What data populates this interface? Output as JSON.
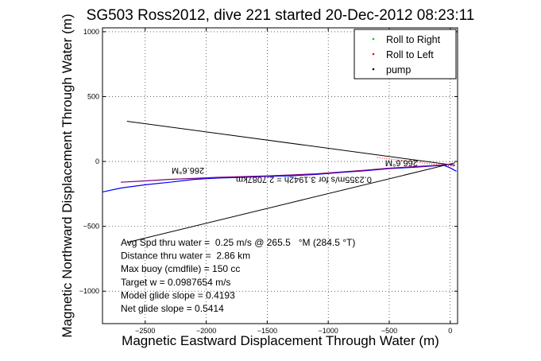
{
  "chart_data": {
    "type": "line",
    "title": "SG503 Ross2012, dive 221 started 20-Dec-2012 08:23:11",
    "xlabel": "Magnetic Eastward Displacement Through Water (m)",
    "ylabel": "Magnetic Northward Displacement Through Water (m)",
    "xlim": [
      -2850,
      60
    ],
    "ylim": [
      -1250,
      1030
    ],
    "x_ticks": [
      -2500,
      -2000,
      -1500,
      -1000,
      -500,
      0
    ],
    "y_ticks": [
      -1000,
      -500,
      0,
      500,
      1000
    ],
    "grid": true,
    "legend_position": "top-right",
    "legend": [
      {
        "label": "Roll to Right",
        "marker": "dot",
        "color": "#00cc00"
      },
      {
        "label": "Roll to Left",
        "marker": "dot",
        "color": "#ff0000"
      },
      {
        "label": "pump",
        "marker": "dot",
        "color": "#000000"
      }
    ],
    "series": [
      {
        "color": "#0000ff",
        "x": [
          -2850,
          -2700,
          -2500,
          -2300,
          -2100,
          -1900,
          -1700,
          -1500,
          -1300,
          -1100,
          -900,
          -700,
          -500,
          -300,
          -150,
          -50,
          0,
          30,
          50
        ],
        "y": [
          -235,
          -205,
          -180,
          -160,
          -138,
          -128,
          -122,
          -115,
          -110,
          -100,
          -85,
          -72,
          -55,
          -45,
          -35,
          -30,
          -50,
          -65,
          -75
        ]
      },
      {
        "color": "#7f007f",
        "x": [
          -2700,
          -2500,
          -2300,
          -2100,
          -1900,
          -1700,
          -1500,
          -1300,
          -1100,
          -900,
          -700,
          -500,
          -300,
          -100,
          0,
          40
        ],
        "y": [
          -160,
          -150,
          -138,
          -130,
          -122,
          -117,
          -111,
          -104,
          -95,
          -82,
          -68,
          -52,
          -40,
          -30,
          -20,
          -30
        ]
      }
    ],
    "lines": [
      {
        "color": "#000000",
        "x": [
          -2650,
          40
        ],
        "y": [
          310,
          -30
        ]
      },
      {
        "color": "#000000",
        "x": [
          -2650,
          40
        ],
        "y": [
          -625,
          -10
        ]
      },
      {
        "color": "#ff0000",
        "style": "dotted",
        "x": [
          -600,
          40
        ],
        "y": [
          30,
          -40
        ]
      }
    ],
    "annotations": [
      {
        "text": "266.6°M",
        "x": -2150,
        "y": -50,
        "rotation": 180
      },
      {
        "text": "0.2355m/s for 3.1942h = 2.7087km",
        "x": -1200,
        "y": -120,
        "rotation": 180
      },
      {
        "text": "266.6°M",
        "x": -400,
        "y": 10,
        "rotation": 180
      }
    ],
    "stats": [
      "Avg Spd thru water =  0.25 m/s @ 265.5   °M (284.5 °T)",
      "Distance thru water =  2.86 km",
      "Max buoy (cmdfile) = 150 cc",
      "Target w = 0.0987654 m/s",
      "Model glide slope = 0.4193",
      "Net glide slope = 0.5414"
    ]
  }
}
